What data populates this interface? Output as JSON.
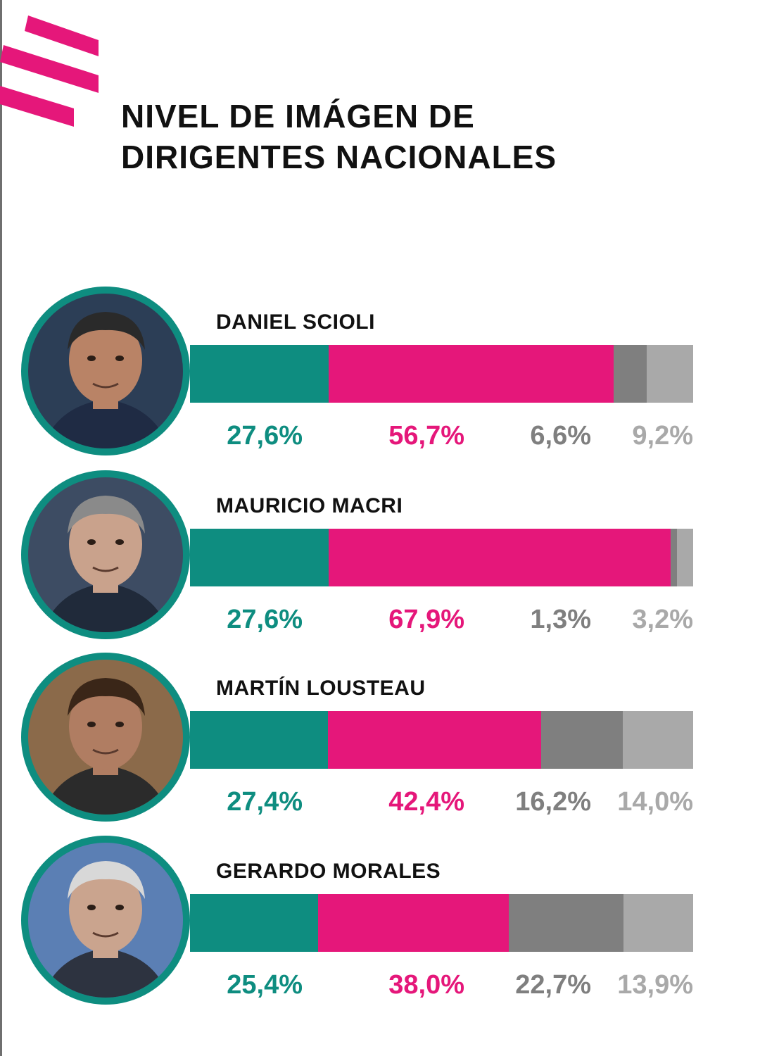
{
  "title": {
    "line1": "NIVEL DE IMÁGEN DE",
    "line2": "DIRIGENTES NACIONALES"
  },
  "colors": {
    "accent": "#e5177a",
    "teal": "#0e8d80",
    "pink": "#e5177a",
    "dark_gray": "#7f7f7f",
    "light_gray": "#a9a9a9"
  },
  "chart_data": {
    "type": "bar",
    "orientation": "horizontal",
    "stacked": true,
    "categories": [
      "DANIEL SCIOLI",
      "MAURICIO MACRI",
      "MARTÍN LOUSTEAU",
      "GERARDO MORALES"
    ],
    "series": [
      {
        "values": [
          27.6,
          27.6,
          27.4,
          25.4
        ],
        "labels": [
          "27,6%",
          "27,6%",
          "27,4%",
          "25,4%"
        ],
        "color": "#0e8d80"
      },
      {
        "values": [
          56.7,
          67.9,
          42.4,
          38.0
        ],
        "labels": [
          "56,7%",
          "67,9%",
          "42,4%",
          "38,0%"
        ],
        "color": "#e5177a"
      },
      {
        "values": [
          6.6,
          1.3,
          16.2,
          22.7
        ],
        "labels": [
          "6,6%",
          "1,3%",
          "16,2%",
          "22,7%"
        ],
        "color": "#7f7f7f"
      },
      {
        "values": [
          9.2,
          3.2,
          14.0,
          13.9
        ],
        "labels": [
          "9,2%",
          "3,2%",
          "14,0%",
          "13,9%"
        ],
        "color": "#a9a9a9"
      }
    ],
    "xlim": [
      0,
      100
    ],
    "legend": "none",
    "grid": false
  }
}
